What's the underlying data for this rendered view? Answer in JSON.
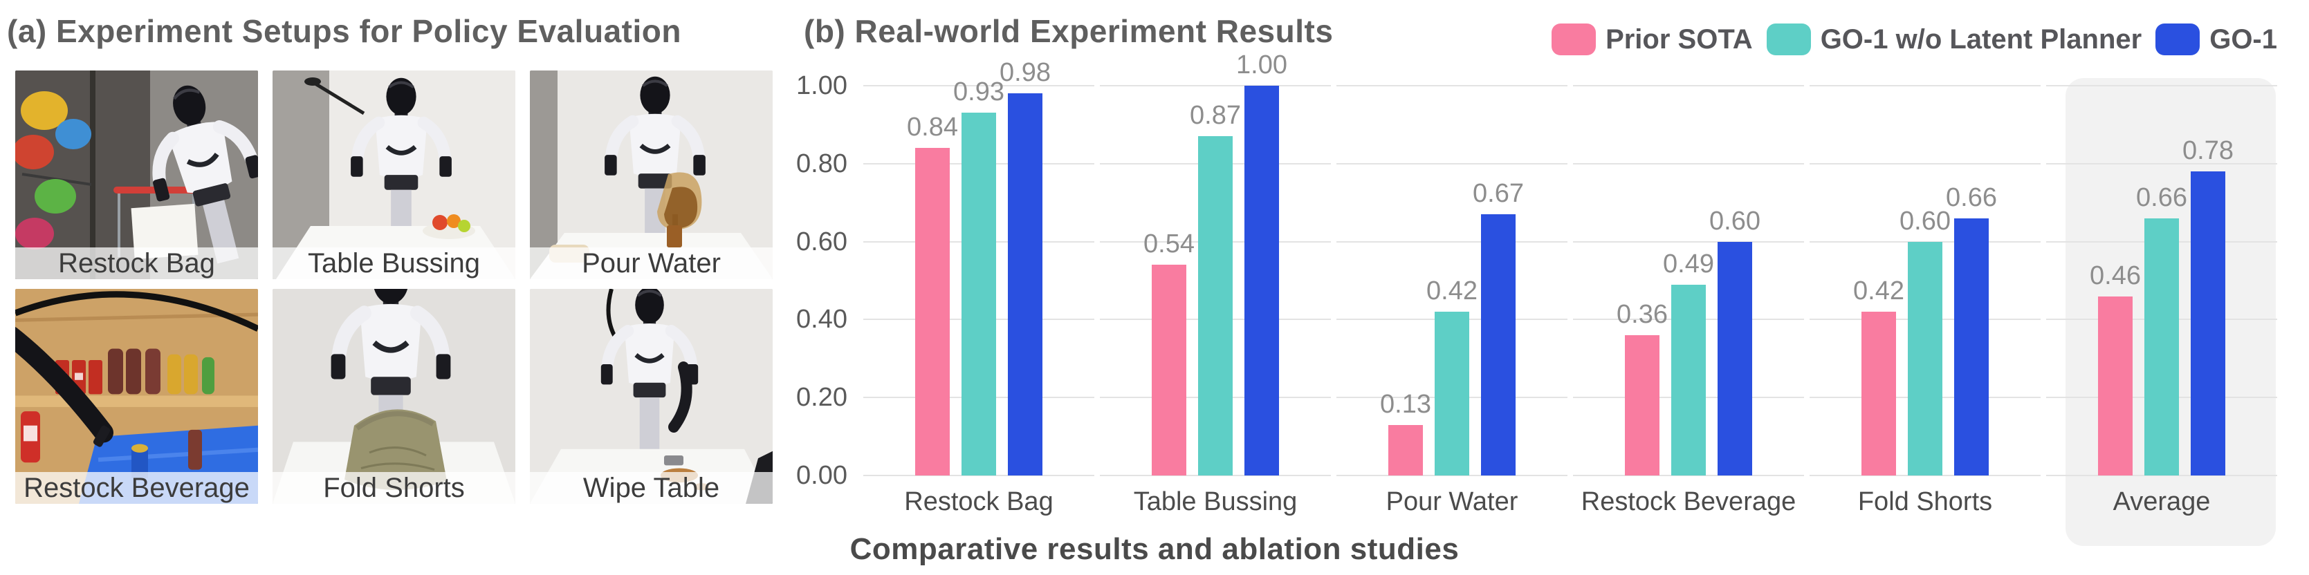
{
  "panel_a": {
    "title": "(a) Experiment Setups for Policy Evaluation",
    "photos": [
      {
        "label": "Restock Bag"
      },
      {
        "label": "Table Bussing"
      },
      {
        "label": "Pour Water"
      },
      {
        "label": "Restock Beverage"
      },
      {
        "label": "Fold Shorts"
      },
      {
        "label": "Wipe Table"
      }
    ]
  },
  "panel_b": {
    "title": "(b) Real-world Experiment Results",
    "caption": "Comparative results and ablation studies"
  },
  "chart_data": {
    "type": "bar",
    "title": "(b) Real-world Experiment Results",
    "categories": [
      "Restock Bag",
      "Table Bussing",
      "Pour Water",
      "Restock Beverage",
      "Fold Shorts",
      "Average"
    ],
    "series": [
      {
        "name": "Prior SOTA",
        "color": "#F97CA0",
        "values": [
          0.84,
          0.54,
          0.13,
          0.36,
          0.42,
          0.46
        ]
      },
      {
        "name": "GO-1 w/o Latent Planner",
        "color": "#5ECFC6",
        "values": [
          0.93,
          0.87,
          0.42,
          0.49,
          0.6,
          0.66
        ]
      },
      {
        "name": "GO-1",
        "color": "#2A50E0",
        "values": [
          0.98,
          1.0,
          0.67,
          0.6,
          0.66,
          0.78
        ]
      }
    ],
    "ylim": [
      0,
      1.0
    ],
    "yticks": [
      "0.00",
      "0.20",
      "0.40",
      "0.60",
      "0.80",
      "1.00"
    ],
    "grid": "horizontal",
    "legend_position": "top-right",
    "value_labels": true,
    "highlighted_category": "Average",
    "highlight_color": "#f2f2f2",
    "xlabel": "",
    "ylabel": ""
  }
}
